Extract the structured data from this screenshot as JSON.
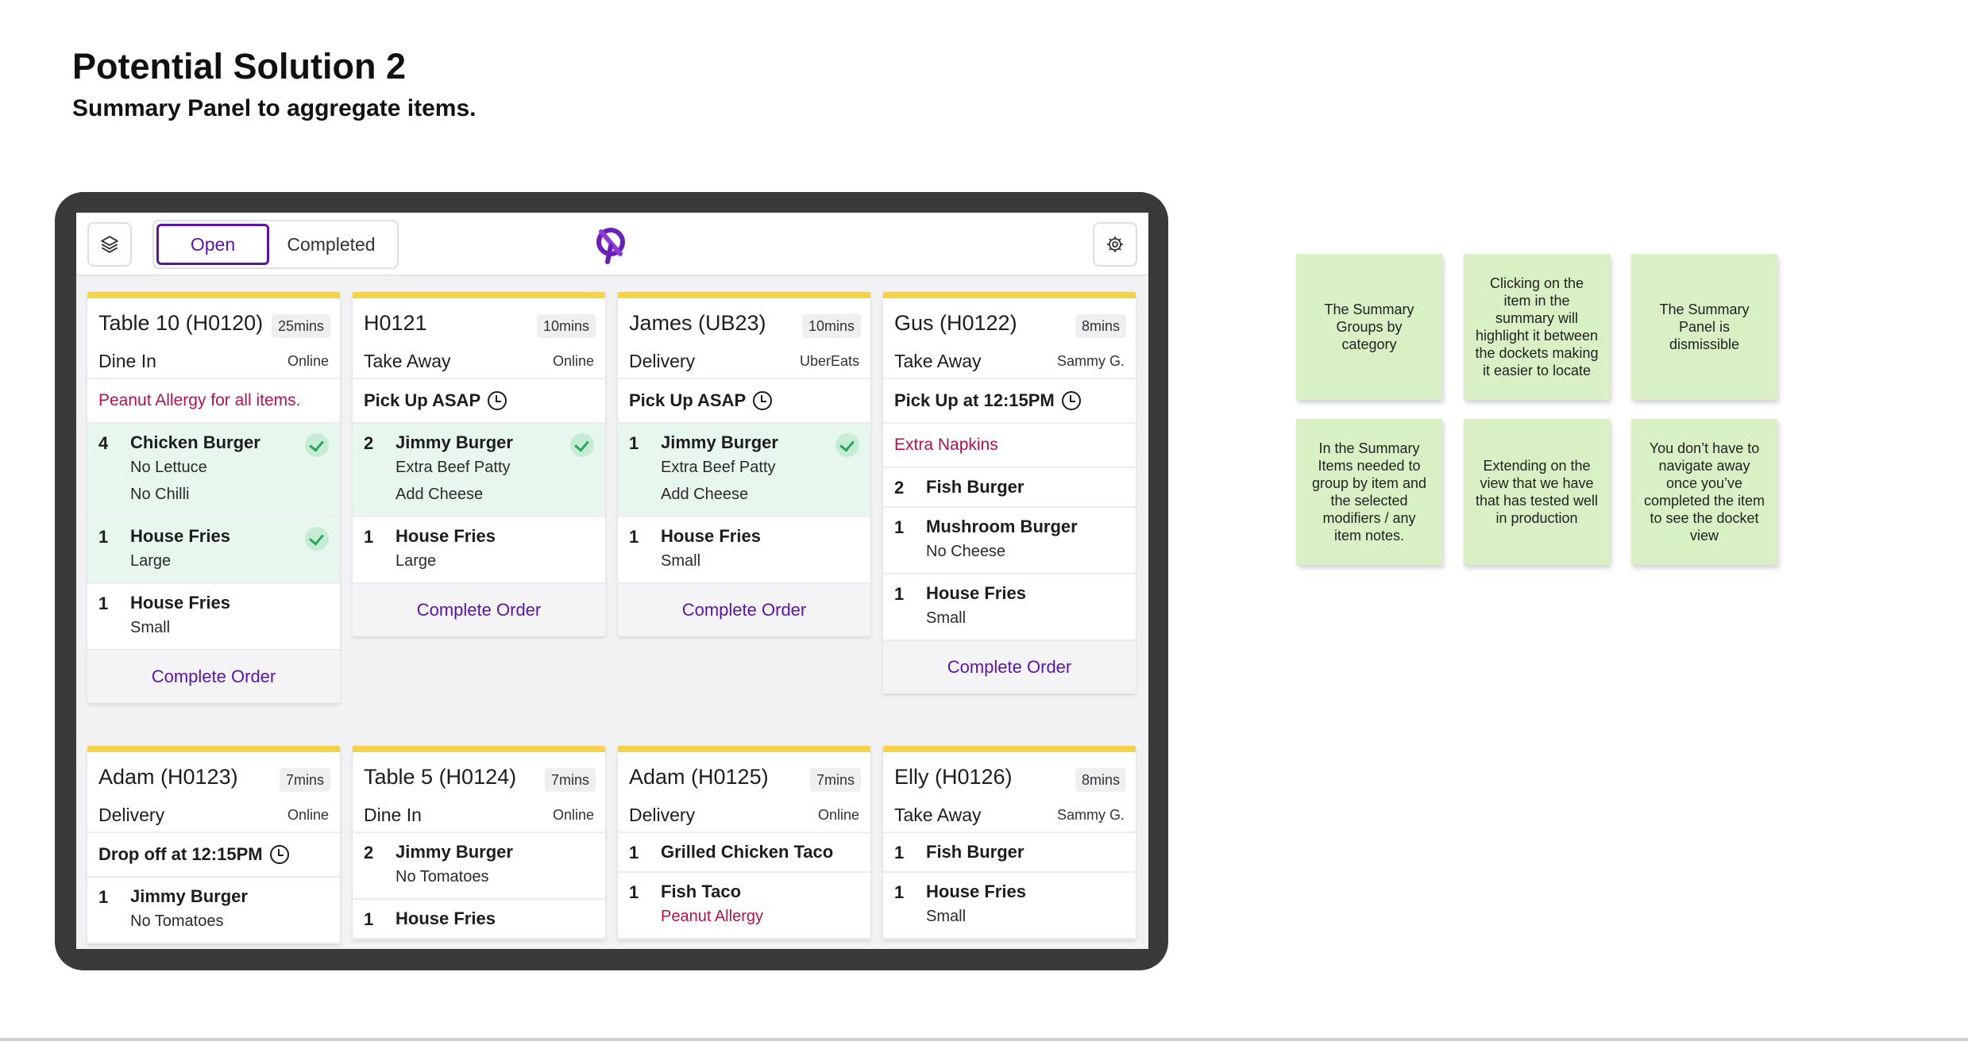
{
  "page": {
    "heading": "Potential Solution 2",
    "subheading": "Summary Panel to aggregate items."
  },
  "app": {
    "tabs": {
      "open": "Open",
      "completed": "Completed"
    },
    "accent": "#5b14a8",
    "ticket_stripe": "#f5d24c",
    "done_tint": "#e8f7ee",
    "alert_red": "#b0124e",
    "icons": {
      "left": "layers-icon",
      "logo": "brand-logo-icon",
      "right": "gear-icon"
    }
  },
  "orders_top": [
    {
      "title": "Table 10 (H0120)",
      "time": "25mins",
      "type": "Dine In",
      "source": "Online",
      "note": "Peanut Allergy for all items.",
      "note_style": "red",
      "items": [
        {
          "qty": "4",
          "name": "Chicken Burger",
          "mods": [
            "No Lettuce",
            "No Chilli"
          ],
          "done": true
        },
        {
          "qty": "1",
          "name": "House Fries",
          "mods": [
            "Large"
          ],
          "done": true
        },
        {
          "qty": "1",
          "name": "House Fries",
          "mods": [
            "Small"
          ],
          "done": false
        }
      ],
      "action": "Complete Order"
    },
    {
      "title": "H0121",
      "time": "10mins",
      "type": "Take Away",
      "source": "Online",
      "note": "Pick Up ASAP",
      "note_style": "time",
      "items": [
        {
          "qty": "2",
          "name": "Jimmy Burger",
          "mods": [
            "Extra Beef Patty",
            "Add Cheese"
          ],
          "done": true
        },
        {
          "qty": "1",
          "name": "House Fries",
          "mods": [
            "Large"
          ],
          "done": false
        }
      ],
      "action": "Complete Order"
    },
    {
      "title": "James (UB23)",
      "time": "10mins",
      "type": "Delivery",
      "source": "UberEats",
      "note": "Pick Up ASAP",
      "note_style": "time",
      "items": [
        {
          "qty": "1",
          "name": "Jimmy Burger",
          "mods": [
            "Extra Beef Patty",
            "Add Cheese"
          ],
          "done": true
        },
        {
          "qty": "1",
          "name": "House Fries",
          "mods": [
            "Small"
          ],
          "done": false
        }
      ],
      "action": "Complete Order"
    },
    {
      "title": "Gus (H0122)",
      "time": "8mins",
      "type": "Take Away",
      "source": "Sammy G.",
      "note": "Pick Up at 12:15PM",
      "note_style": "time",
      "note2": "Extra Napkins",
      "items": [
        {
          "qty": "2",
          "name": "Fish Burger",
          "mods": [],
          "done": false
        },
        {
          "qty": "1",
          "name": "Mushroom Burger",
          "mods": [
            "No Cheese"
          ],
          "done": false
        },
        {
          "qty": "1",
          "name": "House Fries",
          "mods": [
            "Small"
          ],
          "done": false
        }
      ],
      "action": "Complete Order"
    }
  ],
  "orders_bottom": [
    {
      "title": "Adam (H0123)",
      "time": "7mins",
      "type": "Delivery",
      "source": "Online",
      "note": "Drop off at 12:15PM",
      "note_style": "time",
      "items": [
        {
          "qty": "1",
          "name": "Jimmy Burger",
          "mods": [
            "No Tomatoes"
          ],
          "done": false
        }
      ]
    },
    {
      "title": "Table 5 (H0124)",
      "time": "7mins",
      "type": "Dine In",
      "source": "Online",
      "items": [
        {
          "qty": "2",
          "name": "Jimmy Burger",
          "mods": [
            "No Tomatoes"
          ],
          "done": false
        },
        {
          "qty": "1",
          "name": "House Fries",
          "mods": [],
          "done": false
        }
      ]
    },
    {
      "title": "Adam (H0125)",
      "time": "7mins",
      "type": "Delivery",
      "source": "Online",
      "items": [
        {
          "qty": "1",
          "name": "Grilled Chicken Taco",
          "mods": [],
          "done": false
        },
        {
          "qty": "1",
          "name": "Fish Taco",
          "mods": [
            "Peanut Allergy"
          ],
          "mod_style": "red",
          "done": false
        }
      ]
    },
    {
      "title": "Elly (H0126)",
      "time": "8mins",
      "type": "Take Away",
      "source": "Sammy G.",
      "items": [
        {
          "qty": "1",
          "name": "Fish Burger",
          "mods": [],
          "done": false
        },
        {
          "qty": "1",
          "name": "House Fries",
          "mods": [
            "Small"
          ],
          "done": false
        }
      ]
    }
  ],
  "stickies": [
    "The Summary Groups by category",
    "Clicking on the item in the summary will highlight it between the dockets making it easier to locate",
    "The Summary Panel is dismissible",
    "In the Summary Items needed to group by item and the selected modifiers / any item notes.",
    "Extending on the view that we have that has tested well in production",
    "You don’t have to navigate away once you’ve completed the item to see the docket view"
  ]
}
